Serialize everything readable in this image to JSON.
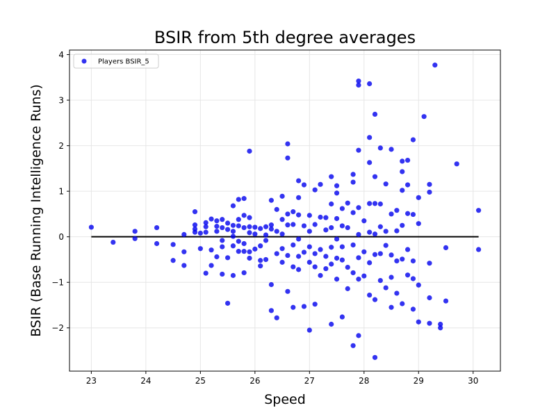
{
  "chart_data": {
    "type": "scatter",
    "title": "BSIR from 5th degree averages",
    "xlabel": "Speed",
    "ylabel": "BSIR (Base Running Intelligence Runs)",
    "xlim": [
      22.6,
      30.5
    ],
    "ylim": [
      -2.95,
      4.1
    ],
    "xticks": [
      23,
      24,
      25,
      26,
      27,
      28,
      29,
      30
    ],
    "yticks": [
      -2,
      -1,
      0,
      1,
      2,
      3,
      4
    ],
    "grid": true,
    "legend": {
      "placement": "top-left",
      "entries": [
        "Players BSIR_5"
      ]
    },
    "reference_line": {
      "y": 0,
      "x_from": 23.0,
      "x_to": 30.1,
      "color": "#000000"
    },
    "colors": {
      "points": "#0000ee",
      "line": "#000000",
      "grid": "#e6e6e6"
    },
    "series": [
      {
        "name": "Players BSIR_5",
        "points": [
          [
            23.0,
            0.21
          ],
          [
            23.4,
            -0.12
          ],
          [
            23.8,
            0.12
          ],
          [
            23.8,
            -0.04
          ],
          [
            24.2,
            0.2
          ],
          [
            24.2,
            -0.15
          ],
          [
            24.5,
            -0.52
          ],
          [
            24.5,
            -0.17
          ],
          [
            24.7,
            0.05
          ],
          [
            24.7,
            -0.33
          ],
          [
            24.7,
            -0.63
          ],
          [
            24.9,
            0.55
          ],
          [
            24.9,
            0.26
          ],
          [
            24.9,
            0.17
          ],
          [
            24.9,
            0.1
          ],
          [
            25.0,
            0.08
          ],
          [
            25.0,
            -0.26
          ],
          [
            25.1,
            0.31
          ],
          [
            25.1,
            0.22
          ],
          [
            25.1,
            0.1
          ],
          [
            25.1,
            -0.8
          ],
          [
            25.2,
            0.39
          ],
          [
            25.2,
            -0.29
          ],
          [
            25.2,
            -0.63
          ],
          [
            25.3,
            0.35
          ],
          [
            25.3,
            0.23
          ],
          [
            25.3,
            0.12
          ],
          [
            25.3,
            -0.44
          ],
          [
            25.4,
            0.38
          ],
          [
            25.4,
            0.2
          ],
          [
            25.4,
            -0.08
          ],
          [
            25.4,
            -0.22
          ],
          [
            25.4,
            -0.82
          ],
          [
            25.5,
            0.3
          ],
          [
            25.5,
            0.16
          ],
          [
            25.5,
            -0.46
          ],
          [
            25.5,
            -1.46
          ],
          [
            25.6,
            0.68
          ],
          [
            25.6,
            0.25
          ],
          [
            25.6,
            0.12
          ],
          [
            25.6,
            0.01
          ],
          [
            25.6,
            -0.2
          ],
          [
            25.6,
            -0.85
          ],
          [
            25.7,
            0.82
          ],
          [
            25.7,
            0.38
          ],
          [
            25.7,
            0.24
          ],
          [
            25.7,
            -0.1
          ],
          [
            25.7,
            -0.32
          ],
          [
            25.8,
            0.84
          ],
          [
            25.8,
            0.47
          ],
          [
            25.8,
            0.2
          ],
          [
            25.8,
            -0.15
          ],
          [
            25.8,
            -0.32
          ],
          [
            25.8,
            -0.79
          ],
          [
            25.9,
            1.88
          ],
          [
            25.9,
            0.42
          ],
          [
            25.9,
            0.22
          ],
          [
            25.9,
            0.09
          ],
          [
            25.9,
            -0.33
          ],
          [
            25.9,
            -0.47
          ],
          [
            26.0,
            0.21
          ],
          [
            26.0,
            0.06
          ],
          [
            26.0,
            -0.27
          ],
          [
            26.1,
            0.18
          ],
          [
            26.1,
            -0.2
          ],
          [
            26.1,
            -0.52
          ],
          [
            26.1,
            -0.64
          ],
          [
            26.2,
            0.22
          ],
          [
            26.2,
            0.04
          ],
          [
            26.2,
            -0.08
          ],
          [
            26.2,
            -0.5
          ],
          [
            26.3,
            0.8
          ],
          [
            26.3,
            0.26
          ],
          [
            26.3,
            0.17
          ],
          [
            26.3,
            -1.05
          ],
          [
            26.3,
            -1.62
          ],
          [
            26.4,
            0.6
          ],
          [
            26.4,
            0.12
          ],
          [
            26.4,
            -0.37
          ],
          [
            26.4,
            -1.78
          ],
          [
            26.5,
            0.89
          ],
          [
            26.5,
            0.38
          ],
          [
            26.5,
            0.06
          ],
          [
            26.5,
            -0.26
          ],
          [
            26.5,
            -0.56
          ],
          [
            26.6,
            2.04
          ],
          [
            26.6,
            1.73
          ],
          [
            26.6,
            0.5
          ],
          [
            26.6,
            0.26
          ],
          [
            26.6,
            -0.41
          ],
          [
            26.6,
            -1.2
          ],
          [
            26.7,
            0.55
          ],
          [
            26.7,
            0.27
          ],
          [
            26.7,
            -0.18
          ],
          [
            26.7,
            -0.66
          ],
          [
            26.7,
            -1.55
          ],
          [
            26.8,
            1.23
          ],
          [
            26.8,
            0.86
          ],
          [
            26.8,
            0.48
          ],
          [
            26.8,
            -0.05
          ],
          [
            26.8,
            -0.43
          ],
          [
            26.8,
            -0.72
          ],
          [
            26.9,
            1.14
          ],
          [
            26.9,
            0.24
          ],
          [
            26.9,
            -0.34
          ],
          [
            26.9,
            -1.53
          ],
          [
            27.0,
            0.47
          ],
          [
            27.0,
            0.12
          ],
          [
            27.0,
            -0.22
          ],
          [
            27.0,
            -0.56
          ],
          [
            27.0,
            -2.05
          ],
          [
            27.1,
            1.03
          ],
          [
            27.1,
            0.27
          ],
          [
            27.1,
            -0.37
          ],
          [
            27.1,
            -0.66
          ],
          [
            27.1,
            -1.48
          ],
          [
            27.2,
            1.15
          ],
          [
            27.2,
            0.43
          ],
          [
            27.2,
            -0.28
          ],
          [
            27.2,
            -0.85
          ],
          [
            27.3,
            0.42
          ],
          [
            27.3,
            0.15
          ],
          [
            27.3,
            -0.43
          ],
          [
            27.3,
            -0.7
          ],
          [
            27.4,
            1.32
          ],
          [
            27.4,
            0.72
          ],
          [
            27.4,
            0.2
          ],
          [
            27.4,
            -0.23
          ],
          [
            27.4,
            -0.6
          ],
          [
            27.4,
            -1.92
          ],
          [
            27.5,
            1.12
          ],
          [
            27.5,
            0.96
          ],
          [
            27.5,
            0.4
          ],
          [
            27.5,
            -0.05
          ],
          [
            27.5,
            -0.47
          ],
          [
            27.5,
            -0.93
          ],
          [
            27.6,
            0.62
          ],
          [
            27.6,
            0.24
          ],
          [
            27.6,
            -0.22
          ],
          [
            27.6,
            -0.51
          ],
          [
            27.6,
            -1.76
          ],
          [
            27.7,
            0.74
          ],
          [
            27.7,
            0.2
          ],
          [
            27.7,
            -0.67
          ],
          [
            27.7,
            -1.14
          ],
          [
            27.8,
            1.37
          ],
          [
            27.8,
            1.2
          ],
          [
            27.8,
            0.53
          ],
          [
            27.8,
            -0.18
          ],
          [
            27.8,
            -0.79
          ],
          [
            27.8,
            -2.39
          ],
          [
            27.9,
            3.42
          ],
          [
            27.9,
            3.33
          ],
          [
            27.9,
            1.9
          ],
          [
            27.9,
            0.64
          ],
          [
            27.9,
            0.05
          ],
          [
            27.9,
            -0.46
          ],
          [
            27.9,
            -0.93
          ],
          [
            27.9,
            -2.17
          ],
          [
            28.0,
            0.35
          ],
          [
            28.0,
            -0.33
          ],
          [
            28.0,
            -0.86
          ],
          [
            28.1,
            3.36
          ],
          [
            28.1,
            2.18
          ],
          [
            28.1,
            1.63
          ],
          [
            28.1,
            0.73
          ],
          [
            28.1,
            0.1
          ],
          [
            28.1,
            -0.57
          ],
          [
            28.1,
            -1.28
          ],
          [
            28.2,
            2.69
          ],
          [
            28.2,
            1.32
          ],
          [
            28.2,
            0.73
          ],
          [
            28.2,
            0.06
          ],
          [
            28.2,
            -0.39
          ],
          [
            28.2,
            -1.38
          ],
          [
            28.2,
            -2.65
          ],
          [
            28.3,
            1.95
          ],
          [
            28.3,
            0.72
          ],
          [
            28.3,
            0.22
          ],
          [
            28.3,
            -0.37
          ],
          [
            28.3,
            -0.96
          ],
          [
            28.4,
            1.16
          ],
          [
            28.4,
            0.12
          ],
          [
            28.4,
            -0.19
          ],
          [
            28.4,
            -1.12
          ],
          [
            28.5,
            1.92
          ],
          [
            28.5,
            0.5
          ],
          [
            28.5,
            -0.4
          ],
          [
            28.5,
            -0.89
          ],
          [
            28.5,
            -1.55
          ],
          [
            28.6,
            0.58
          ],
          [
            28.6,
            0.13
          ],
          [
            28.6,
            -0.53
          ],
          [
            28.6,
            -1.24
          ],
          [
            28.7,
            1.66
          ],
          [
            28.7,
            1.43
          ],
          [
            28.7,
            1.02
          ],
          [
            28.7,
            0.25
          ],
          [
            28.7,
            -0.49
          ],
          [
            28.7,
            -1.47
          ],
          [
            28.8,
            1.68
          ],
          [
            28.8,
            1.14
          ],
          [
            28.8,
            0.51
          ],
          [
            28.8,
            -0.28
          ],
          [
            28.8,
            -0.84
          ],
          [
            28.9,
            2.13
          ],
          [
            28.9,
            0.49
          ],
          [
            28.9,
            -0.53
          ],
          [
            28.9,
            -0.92
          ],
          [
            28.9,
            -1.59
          ],
          [
            29.0,
            0.86
          ],
          [
            29.0,
            0.29
          ],
          [
            29.0,
            -1.06
          ],
          [
            29.0,
            -1.87
          ],
          [
            29.1,
            2.64
          ],
          [
            29.2,
            1.15
          ],
          [
            29.2,
            0.98
          ],
          [
            29.2,
            -0.58
          ],
          [
            29.2,
            -1.34
          ],
          [
            29.2,
            -1.9
          ],
          [
            29.3,
            3.77
          ],
          [
            29.4,
            -1.92
          ],
          [
            29.4,
            -2.0
          ],
          [
            29.5,
            -0.24
          ],
          [
            29.5,
            -1.41
          ],
          [
            29.7,
            1.6
          ],
          [
            30.1,
            0.58
          ],
          [
            30.1,
            -0.28
          ]
        ]
      }
    ]
  }
}
